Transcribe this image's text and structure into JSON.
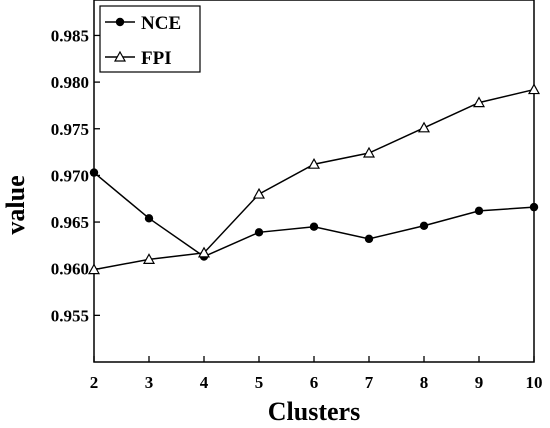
{
  "chart_data": {
    "type": "line",
    "title": "",
    "xlabel": "Clusters",
    "ylabel": "value",
    "x": [
      2,
      3,
      4,
      5,
      6,
      7,
      8,
      9,
      10
    ],
    "x_ticks": [
      "2",
      "3",
      "4",
      "5",
      "6",
      "7",
      "8",
      "9",
      "10"
    ],
    "xlim": [
      2,
      10
    ],
    "ylim": [
      0.95,
      0.9888
    ],
    "y_ticks": [
      "0.955",
      "0.960",
      "0.965",
      "0.970",
      "0.975",
      "0.980",
      "0.985"
    ],
    "y_tick_values": [
      0.955,
      0.96,
      0.965,
      0.97,
      0.975,
      0.98,
      0.985
    ],
    "grid": false,
    "legend": "top-left",
    "series": [
      {
        "name": "NCE",
        "marker": "filled-circle",
        "color": "#000000",
        "values": [
          0.9703,
          0.9654,
          0.9613,
          0.9639,
          0.9645,
          0.9632,
          0.9646,
          0.9662,
          0.9666
        ]
      },
      {
        "name": "FPI",
        "marker": "open-triangle",
        "color": "#000000",
        "values": [
          0.9599,
          0.961,
          0.9617,
          0.968,
          0.9712,
          0.9724,
          0.9751,
          0.9778,
          0.9792
        ]
      }
    ]
  }
}
